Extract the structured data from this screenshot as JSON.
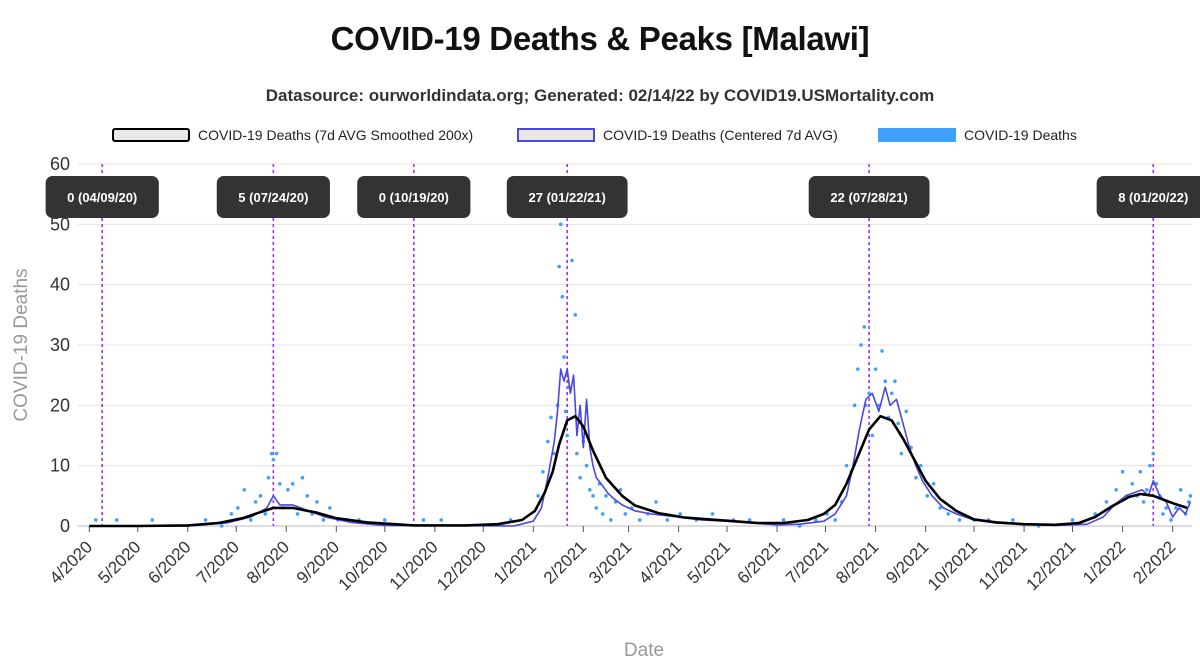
{
  "title": "COVID-19 Deaths & Peaks [Malawi]",
  "subtitle": "Datasource: ourworldindata.org; Generated: 02/14/22 by COVID19.USMortality.com",
  "colors": {
    "smooth": "#000000",
    "centered": "#4a48e0",
    "daily": "#3ea0ff",
    "peak_line": "#9b30ff",
    "grid": "#e5e5e5",
    "badge": "#333333"
  },
  "chart_data": {
    "type": "line",
    "title": "COVID-19 Deaths & Peaks [Malawi]",
    "xlabel": "Date",
    "ylabel": "COVID-19 Deaths",
    "ylim": [
      0,
      60
    ],
    "yticks": [
      0,
      10,
      20,
      30,
      40,
      50,
      60
    ],
    "xlim": [
      "2020-03-25",
      "2022-02-13"
    ],
    "grid": true,
    "legend_position": "top",
    "xtick_labels": [
      "4/2020",
      "5/2020",
      "6/2020",
      "7/2020",
      "8/2020",
      "9/2020",
      "10/2020",
      "11/2020",
      "12/2020",
      "1/2021",
      "2/2021",
      "3/2021",
      "4/2021",
      "5/2021",
      "6/2021",
      "7/2021",
      "8/2021",
      "9/2021",
      "10/2021",
      "11/2021",
      "12/2021",
      "1/2022",
      "2/2022"
    ],
    "xtick_dates": [
      "2020-04-01",
      "2020-05-01",
      "2020-06-01",
      "2020-07-01",
      "2020-08-01",
      "2020-09-01",
      "2020-10-01",
      "2020-11-01",
      "2020-12-01",
      "2021-01-01",
      "2021-02-01",
      "2021-03-01",
      "2021-04-01",
      "2021-05-01",
      "2021-06-01",
      "2021-07-01",
      "2021-08-01",
      "2021-09-01",
      "2021-10-01",
      "2021-11-01",
      "2021-12-01",
      "2022-01-01",
      "2022-02-01"
    ],
    "series": [
      {
        "name": "COVID-19 Deaths (7d AVG Smoothed 200x)",
        "style": "line",
        "x": [
          "2020-04-01",
          "2020-05-01",
          "2020-06-01",
          "2020-06-20",
          "2020-07-05",
          "2020-07-15",
          "2020-07-24",
          "2020-08-05",
          "2020-08-20",
          "2020-09-01",
          "2020-09-20",
          "2020-10-19",
          "2020-11-20",
          "2020-12-10",
          "2020-12-25",
          "2021-01-02",
          "2021-01-08",
          "2021-01-13",
          "2021-01-17",
          "2021-01-22",
          "2021-01-27",
          "2021-02-01",
          "2021-02-07",
          "2021-02-15",
          "2021-02-25",
          "2021-03-05",
          "2021-03-20",
          "2021-04-05",
          "2021-04-20",
          "2021-05-05",
          "2021-05-20",
          "2021-06-05",
          "2021-06-20",
          "2021-06-30",
          "2021-07-07",
          "2021-07-14",
          "2021-07-21",
          "2021-07-28",
          "2021-08-04",
          "2021-08-11",
          "2021-08-18",
          "2021-08-25",
          "2021-09-01",
          "2021-09-10",
          "2021-09-20",
          "2021-10-01",
          "2021-10-15",
          "2021-11-01",
          "2021-11-20",
          "2021-12-05",
          "2021-12-15",
          "2021-12-25",
          "2022-01-05",
          "2022-01-12",
          "2022-01-20",
          "2022-01-27",
          "2022-02-03",
          "2022-02-10"
        ],
        "y": [
          0,
          0,
          0.1,
          0.5,
          1.3,
          2.2,
          3.0,
          3.0,
          2.2,
          1.3,
          0.6,
          0.1,
          0.1,
          0.3,
          1.0,
          2.5,
          5.5,
          9.0,
          13.5,
          17.5,
          18.2,
          16.5,
          12.5,
          8.0,
          5.0,
          3.4,
          2.1,
          1.4,
          1.1,
          0.8,
          0.5,
          0.5,
          1.0,
          2.0,
          3.5,
          7.0,
          11.5,
          16.0,
          18.2,
          17.5,
          14.5,
          11.0,
          7.5,
          4.5,
          2.5,
          1.1,
          0.6,
          0.3,
          0.2,
          0.5,
          1.5,
          3.2,
          4.8,
          5.3,
          5.0,
          4.3,
          3.6,
          3.0
        ]
      },
      {
        "name": "COVID-19 Deaths (Centered 7d AVG)",
        "style": "line",
        "x": [
          "2020-04-01",
          "2020-06-01",
          "2020-06-25",
          "2020-07-10",
          "2020-07-20",
          "2020-07-24",
          "2020-07-28",
          "2020-08-05",
          "2020-08-15",
          "2020-08-25",
          "2020-09-10",
          "2020-10-01",
          "2020-12-20",
          "2021-01-01",
          "2021-01-06",
          "2021-01-10",
          "2021-01-14",
          "2021-01-16",
          "2021-01-18",
          "2021-01-20",
          "2021-01-22",
          "2021-01-24",
          "2021-01-26",
          "2021-01-28",
          "2021-01-30",
          "2021-02-01",
          "2021-02-03",
          "2021-02-05",
          "2021-02-07",
          "2021-02-09",
          "2021-02-12",
          "2021-02-16",
          "2021-02-20",
          "2021-02-25",
          "2021-03-05",
          "2021-03-15",
          "2021-04-01",
          "2021-04-15",
          "2021-05-01",
          "2021-05-15",
          "2021-06-01",
          "2021-06-15",
          "2021-06-30",
          "2021-07-07",
          "2021-07-14",
          "2021-07-18",
          "2021-07-22",
          "2021-07-26",
          "2021-07-30",
          "2021-08-03",
          "2021-08-07",
          "2021-08-10",
          "2021-08-14",
          "2021-08-18",
          "2021-08-22",
          "2021-08-26",
          "2021-08-30",
          "2021-09-05",
          "2021-09-12",
          "2021-09-20",
          "2021-10-01",
          "2021-10-15",
          "2021-11-01",
          "2021-11-20",
          "2021-12-10",
          "2021-12-20",
          "2021-12-27",
          "2022-01-03",
          "2022-01-08",
          "2022-01-13",
          "2022-01-17",
          "2022-01-20",
          "2022-01-24",
          "2022-01-28",
          "2022-02-01",
          "2022-02-05",
          "2022-02-09",
          "2022-02-12"
        ],
        "y": [
          0,
          0,
          0.5,
          1.5,
          3.0,
          5.0,
          3.5,
          3.5,
          2.5,
          1.5,
          0.6,
          0.1,
          0,
          0.8,
          3,
          8,
          14,
          19,
          26,
          24,
          26,
          22,
          25,
          15,
          20,
          13,
          21,
          13,
          10,
          8,
          7,
          5.5,
          4.5,
          3.5,
          2.5,
          2,
          1.5,
          1,
          0.8,
          0.5,
          0.2,
          0.3,
          0.8,
          2,
          5,
          10,
          16,
          21,
          22,
          19,
          23,
          20,
          21,
          17,
          13,
          10,
          7.5,
          5,
          3,
          2,
          1,
          0.5,
          0.3,
          0.1,
          0.3,
          1.5,
          3.5,
          5,
          5.5,
          6,
          5,
          7.5,
          5,
          4,
          1.5,
          3,
          2,
          4
        ]
      },
      {
        "name": "COVID-19 Deaths",
        "style": "scatter",
        "x": [
          "2020-04-05",
          "2020-04-18",
          "2020-05-10",
          "2020-06-12",
          "2020-06-22",
          "2020-06-28",
          "2020-07-02",
          "2020-07-06",
          "2020-07-10",
          "2020-07-13",
          "2020-07-16",
          "2020-07-19",
          "2020-07-21",
          "2020-07-23",
          "2020-07-24",
          "2020-07-26",
          "2020-07-28",
          "2020-07-30",
          "2020-08-02",
          "2020-08-05",
          "2020-08-08",
          "2020-08-11",
          "2020-08-14",
          "2020-08-17",
          "2020-08-20",
          "2020-08-24",
          "2020-08-28",
          "2020-09-02",
          "2020-09-08",
          "2020-09-15",
          "2020-10-01",
          "2020-10-25",
          "2020-11-05",
          "2020-12-18",
          "2021-01-04",
          "2021-01-07",
          "2021-01-10",
          "2021-01-12",
          "2021-01-14",
          "2021-01-16",
          "2021-01-17",
          "2021-01-18",
          "2021-01-19",
          "2021-01-20",
          "2021-01-21",
          "2021-01-22",
          "2021-01-23",
          "2021-01-25",
          "2021-01-27",
          "2021-01-28",
          "2021-01-30",
          "2021-02-01",
          "2021-02-03",
          "2021-02-05",
          "2021-02-07",
          "2021-02-09",
          "2021-02-11",
          "2021-02-13",
          "2021-02-15",
          "2021-02-18",
          "2021-02-21",
          "2021-02-24",
          "2021-02-27",
          "2021-03-03",
          "2021-03-08",
          "2021-03-13",
          "2021-03-18",
          "2021-03-25",
          "2021-04-02",
          "2021-04-12",
          "2021-04-22",
          "2021-05-05",
          "2021-05-15",
          "2021-06-05",
          "2021-06-15",
          "2021-06-25",
          "2021-07-02",
          "2021-07-07",
          "2021-07-11",
          "2021-07-14",
          "2021-07-17",
          "2021-07-19",
          "2021-07-21",
          "2021-07-23",
          "2021-07-25",
          "2021-07-26",
          "2021-07-28",
          "2021-07-30",
          "2021-08-01",
          "2021-08-03",
          "2021-08-05",
          "2021-08-07",
          "2021-08-09",
          "2021-08-11",
          "2021-08-13",
          "2021-08-15",
          "2021-08-17",
          "2021-08-20",
          "2021-08-23",
          "2021-08-26",
          "2021-08-29",
          "2021-09-02",
          "2021-09-06",
          "2021-09-10",
          "2021-09-15",
          "2021-09-22",
          "2021-10-01",
          "2021-10-10",
          "2021-10-25",
          "2021-11-10",
          "2021-12-01",
          "2021-12-15",
          "2021-12-22",
          "2021-12-28",
          "2022-01-01",
          "2022-01-04",
          "2022-01-07",
          "2022-01-10",
          "2022-01-12",
          "2022-01-14",
          "2022-01-16",
          "2022-01-18",
          "2022-01-20",
          "2022-01-22",
          "2022-01-24",
          "2022-01-26",
          "2022-01-28",
          "2022-01-31",
          "2022-02-03",
          "2022-02-06",
          "2022-02-09",
          "2022-02-11",
          "2022-02-12"
        ],
        "y": [
          1,
          1,
          1,
          1,
          0,
          2,
          3,
          6,
          1,
          4,
          5,
          2,
          8,
          12,
          11,
          12,
          7,
          3,
          6,
          7,
          2,
          8,
          5,
          2,
          4,
          1,
          3,
          1,
          1,
          1,
          1,
          1,
          1,
          1,
          5,
          9,
          14,
          18,
          12,
          20,
          43,
          50,
          38,
          28,
          19,
          15,
          23,
          44,
          35,
          12,
          8,
          14,
          10,
          6,
          5,
          3,
          7,
          2,
          5,
          1,
          4,
          6,
          2,
          3,
          1,
          2,
          4,
          1,
          2,
          1,
          2,
          1,
          1,
          1,
          0,
          1,
          2,
          1,
          4,
          10,
          9,
          20,
          26,
          30,
          33,
          20,
          22,
          15,
          26,
          20,
          29,
          24,
          18,
          22,
          24,
          17,
          12,
          19,
          13,
          8,
          10,
          5,
          7,
          3,
          2,
          1,
          1,
          1,
          1,
          0,
          1,
          2,
          4,
          6,
          9,
          5,
          7,
          5,
          9,
          4,
          6,
          10,
          12,
          7,
          5,
          2,
          3,
          1,
          3,
          6,
          2,
          4,
          5
        ]
      }
    ],
    "peaks": [
      {
        "date": "2020-04-09",
        "label": "0 (04/09/20)"
      },
      {
        "date": "2020-07-24",
        "label": "5 (07/24/20)"
      },
      {
        "date": "2020-10-19",
        "label": "0 (10/19/20)"
      },
      {
        "date": "2021-01-22",
        "label": "27 (01/22/21)"
      },
      {
        "date": "2021-07-28",
        "label": "22 (07/28/21)"
      },
      {
        "date": "2022-01-20",
        "label": "8 (01/20/22)"
      }
    ]
  }
}
